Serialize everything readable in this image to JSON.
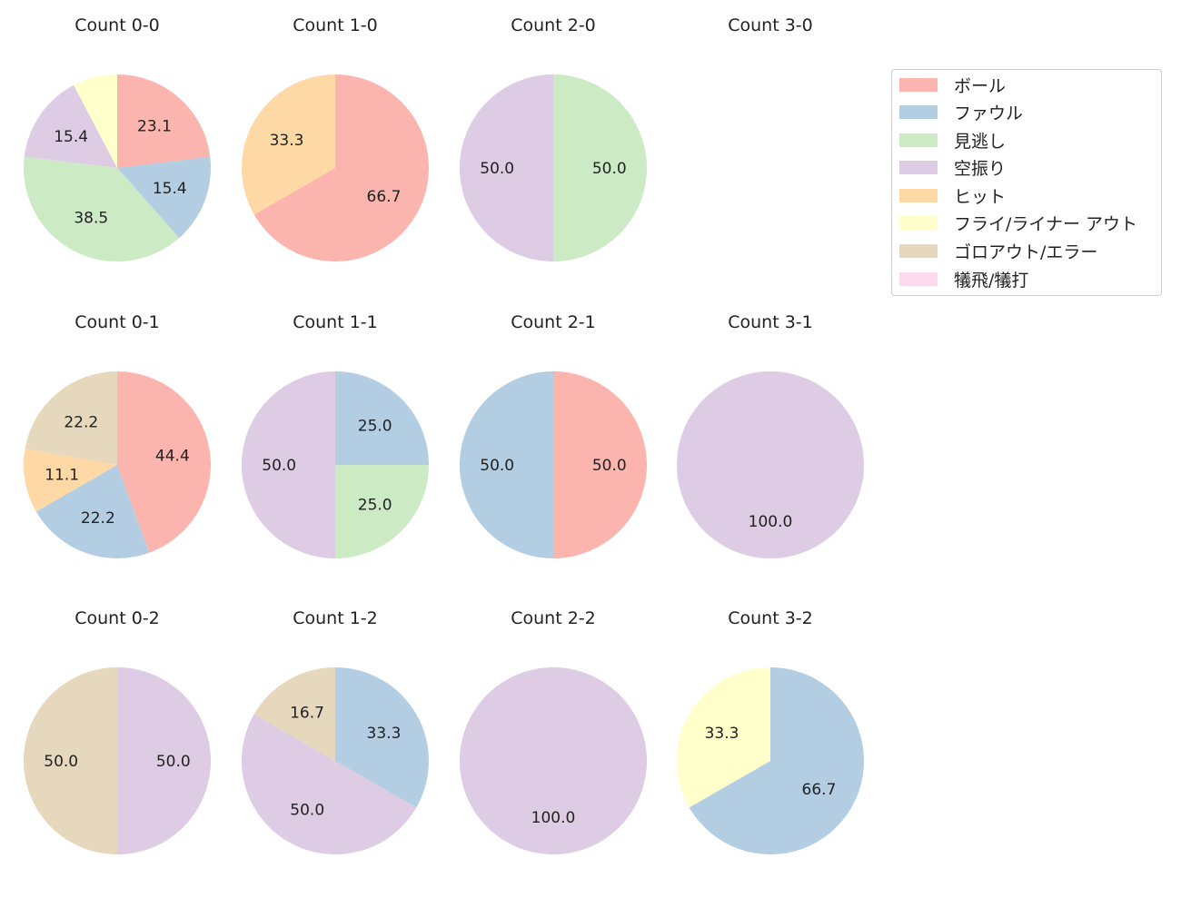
{
  "colors": {
    "ボール": "#fbb4ae",
    "ファウル": "#b3cde3",
    "見逃し": "#ccebc5",
    "空振り": "#decbe4",
    "ヒット": "#fed9a6",
    "フライ/ライナー アウト": "#ffffcc",
    "ゴロアウト/エラー": "#e5d8bd",
    "犠飛/犠打": "#fddaec"
  },
  "legend": {
    "items": [
      {
        "label": "ボール",
        "color": "#fbb4ae"
      },
      {
        "label": "ファウル",
        "color": "#b3cde3"
      },
      {
        "label": "見逃し",
        "color": "#ccebc5"
      },
      {
        "label": "空振り",
        "color": "#decbe4"
      },
      {
        "label": "ヒット",
        "color": "#fed9a6"
      },
      {
        "label": "フライ/ライナー アウト",
        "color": "#ffffcc"
      },
      {
        "label": "ゴロアウト/エラー",
        "color": "#e5d8bd"
      },
      {
        "label": "犠飛/犠打",
        "color": "#fddaec"
      }
    ]
  },
  "chart_data": {
    "type": "pie",
    "title": "",
    "layout": {
      "rows": 3,
      "cols": 4,
      "legend_position": "upper right"
    },
    "start_angle": 90,
    "direction": "clockwise",
    "categories": [
      "ボール",
      "ファウル",
      "見逃し",
      "空振り",
      "ヒット",
      "フライ/ライナー アウト",
      "ゴロアウト/エラー",
      "犠飛/犠打"
    ],
    "charts": [
      {
        "title": "Count 0-0",
        "row": 0,
        "col": 0,
        "slices": [
          {
            "label": "ボール",
            "value": 23.1
          },
          {
            "label": "ファウル",
            "value": 15.4
          },
          {
            "label": "見逃し",
            "value": 38.5
          },
          {
            "label": "空振り",
            "value": 15.4
          },
          {
            "label": "フライ/ライナー アウト",
            "value": 7.7,
            "hide_label": true
          }
        ]
      },
      {
        "title": "Count 1-0",
        "row": 0,
        "col": 1,
        "slices": [
          {
            "label": "ボール",
            "value": 66.7
          },
          {
            "label": "ヒット",
            "value": 33.3
          }
        ]
      },
      {
        "title": "Count 2-0",
        "row": 0,
        "col": 2,
        "slices": [
          {
            "label": "見逃し",
            "value": 50.0
          },
          {
            "label": "空振り",
            "value": 50.0
          }
        ]
      },
      {
        "title": "Count 3-0",
        "row": 0,
        "col": 3,
        "slices": []
      },
      {
        "title": "Count 0-1",
        "row": 1,
        "col": 0,
        "slices": [
          {
            "label": "ボール",
            "value": 44.4
          },
          {
            "label": "ファウル",
            "value": 22.2
          },
          {
            "label": "ヒット",
            "value": 11.1
          },
          {
            "label": "ゴロアウト/エラー",
            "value": 22.2
          }
        ]
      },
      {
        "title": "Count 1-1",
        "row": 1,
        "col": 1,
        "slices": [
          {
            "label": "ファウル",
            "value": 25.0
          },
          {
            "label": "見逃し",
            "value": 25.0
          },
          {
            "label": "空振り",
            "value": 50.0
          }
        ]
      },
      {
        "title": "Count 2-1",
        "row": 1,
        "col": 2,
        "slices": [
          {
            "label": "ボール",
            "value": 50.0
          },
          {
            "label": "ファウル",
            "value": 50.0
          }
        ]
      },
      {
        "title": "Count 3-1",
        "row": 1,
        "col": 3,
        "slices": [
          {
            "label": "空振り",
            "value": 100.0
          }
        ]
      },
      {
        "title": "Count 0-2",
        "row": 2,
        "col": 0,
        "slices": [
          {
            "label": "空振り",
            "value": 50.0
          },
          {
            "label": "ゴロアウト/エラー",
            "value": 50.0
          }
        ]
      },
      {
        "title": "Count 1-2",
        "row": 2,
        "col": 1,
        "slices": [
          {
            "label": "ファウル",
            "value": 33.3
          },
          {
            "label": "空振り",
            "value": 50.0
          },
          {
            "label": "ゴロアウト/エラー",
            "value": 16.7
          }
        ]
      },
      {
        "title": "Count 2-2",
        "row": 2,
        "col": 2,
        "slices": [
          {
            "label": "空振り",
            "value": 100.0
          }
        ]
      },
      {
        "title": "Count 3-2",
        "row": 2,
        "col": 3,
        "slices": [
          {
            "label": "ファウル",
            "value": 66.7
          },
          {
            "label": "フライ/ライナー アウト",
            "value": 33.3
          }
        ]
      }
    ]
  }
}
